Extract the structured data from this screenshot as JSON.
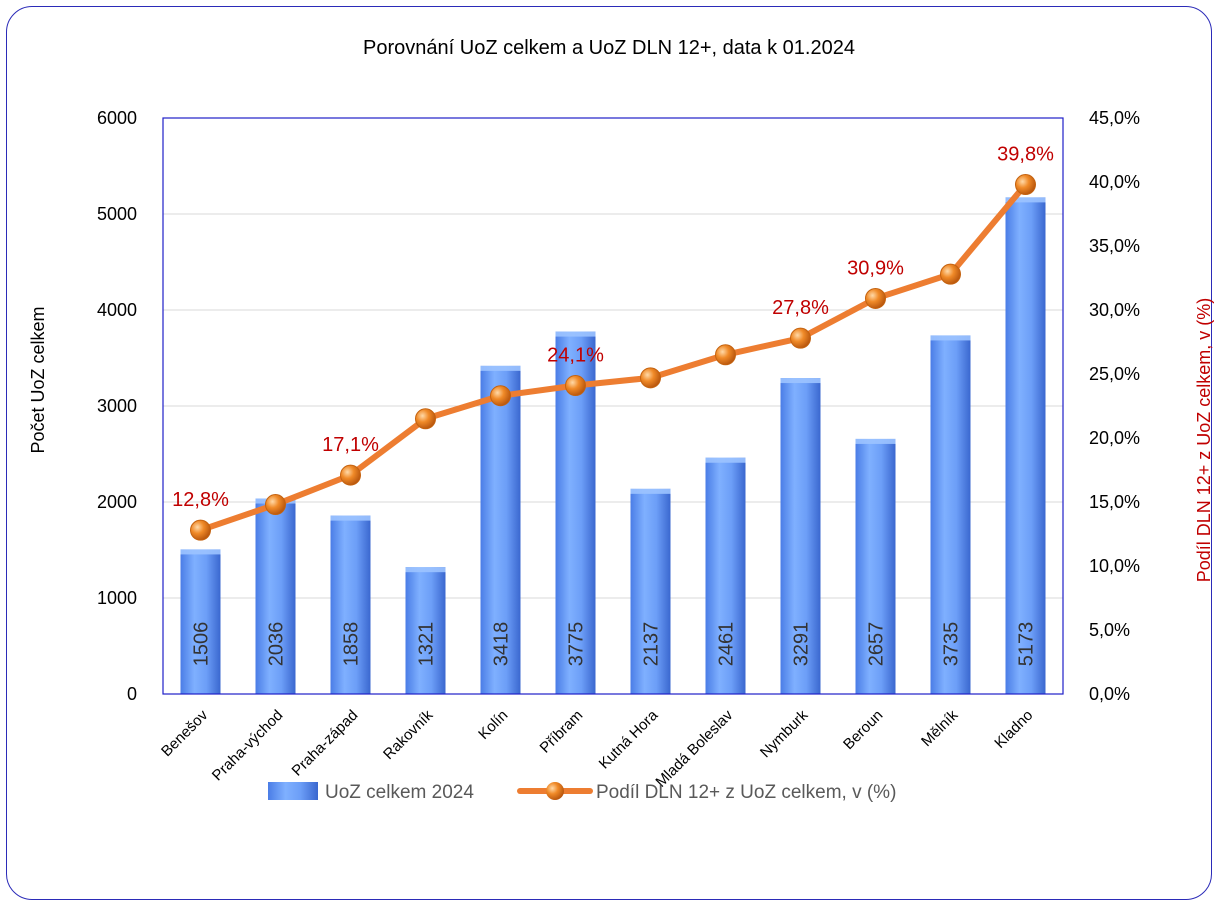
{
  "chart_data": {
    "type": "bar",
    "title": "Porovnání UoZ celkem a UoZ DLN 12+, data k 01.2024",
    "categories": [
      "Benešov",
      "Praha-východ",
      "Praha-západ",
      "Rakovník",
      "Kolín",
      "Příbram",
      "Kutná Hora",
      "Mladá Boleslav",
      "Nymburk",
      "Beroun",
      "Mělník",
      "Kladno"
    ],
    "series": [
      {
        "name": "UoZ celkem 2024",
        "type": "bar",
        "axis": "left",
        "values": [
          1506,
          2036,
          1858,
          1321,
          3418,
          3775,
          2137,
          2461,
          3291,
          2657,
          3735,
          5173
        ],
        "labels": [
          "1506",
          "2036",
          "1858",
          "1321",
          "3418",
          "3775",
          "2137",
          "2461",
          "3291",
          "2657",
          "3735",
          "5173"
        ]
      },
      {
        "name": "Podíl DLN 12+ z UoZ celkem, v  (%)",
        "type": "line",
        "axis": "right",
        "values": [
          12.8,
          14.8,
          17.1,
          21.5,
          23.3,
          24.1,
          24.7,
          26.5,
          27.8,
          30.9,
          32.8,
          39.8
        ],
        "point_labels": [
          "12,8%",
          "",
          "17,1%",
          "",
          "",
          "24,1%",
          "",
          "",
          "27,8%",
          "30,9%",
          "",
          "39,8%"
        ]
      }
    ],
    "ylabel": "Počet UoZ celkem",
    "y2label": "Podíl DLN 12+ z UoZ celkem, v (%)",
    "ylim": [
      0,
      6000
    ],
    "y2lim": [
      0,
      45
    ],
    "yticks": [
      "0",
      "1000",
      "2000",
      "3000",
      "4000",
      "5000",
      "6000"
    ],
    "y2ticks": [
      "0,0%",
      "5,0%",
      "10,0%",
      "15,0%",
      "20,0%",
      "25,0%",
      "30,0%",
      "35,0%",
      "40,0%",
      "45,0%"
    ],
    "grid": true,
    "legend_position": "bottom",
    "colors": {
      "bar": "#6f9ff5",
      "bar_dark": "#3f6fd6",
      "line": "#ed7d31",
      "marker": "#e8801e",
      "plot_border": "#1f1fc8",
      "grid": "#d9d9d9",
      "pct_label": "#c00000"
    }
  }
}
